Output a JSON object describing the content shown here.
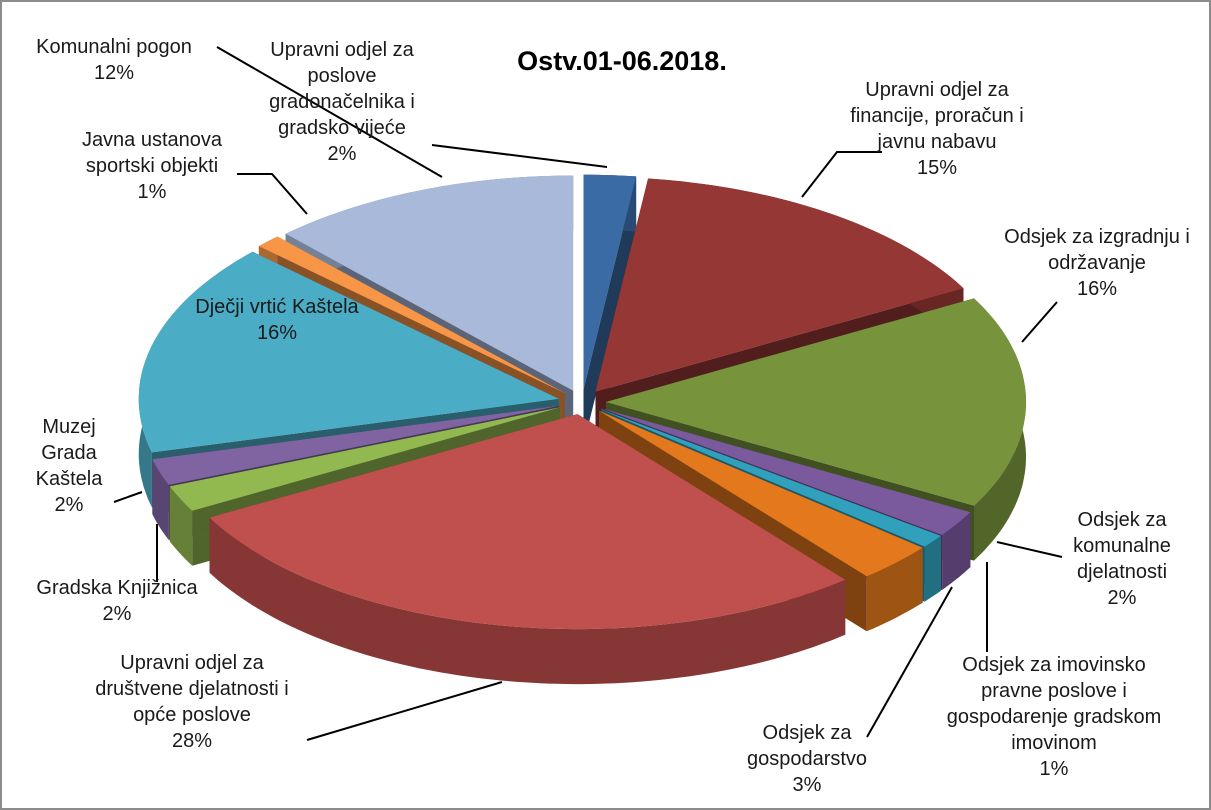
{
  "chart_data": {
    "type": "pie",
    "title": "Ostv.01-06.2018.",
    "categories": [
      "Upravni odjel za poslove gradonačelnika i gradsko vijeće",
      "Upravni odjel za financije, proračun i javnu nabavu",
      "Odsjek za izgradnju i održavanje",
      "Odsjek za komunalne djelatnosti",
      "Odsjek za imovinsko pravne poslove i gospodarenje gradskom imovinom",
      "Odsjek za gospodarstvo",
      "Upravni odjel za društvene djelatnosti i opće poslove",
      "Gradska Knjižnica",
      "Muzej Grada Kaštela",
      "Dječji vrtić Kaštela",
      "Javna ustanova sportski objekti",
      "Komunalni pogon"
    ],
    "values": [
      2,
      15,
      16,
      2,
      1,
      3,
      28,
      2,
      2,
      16,
      1,
      12
    ],
    "value_labels": [
      "2%",
      "15%",
      "16%",
      "2%",
      "1%",
      "3%",
      "28%",
      "2%",
      "2%",
      "16%",
      "1%",
      "12%"
    ],
    "colors": [
      "#3b6ba5",
      "#953735",
      "#77933c",
      "#7a5a9c",
      "#31a0bc",
      "#e3791c",
      "#c0504d",
      "#92b94f",
      "#8064a2",
      "#4bacc6",
      "#f79646",
      "#a8b9d9"
    ]
  }
}
